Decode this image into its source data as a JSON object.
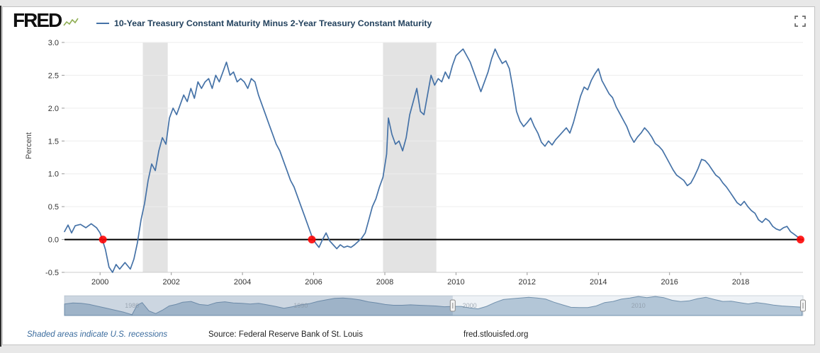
{
  "header": {
    "logo": "FRED",
    "legend_label": "10-Year Treasury Constant Maturity Minus 2-Year Treasury Constant Maturity"
  },
  "icons": {
    "logo_spark": "line-chart-sparkline",
    "fullscreen": "expand-corners"
  },
  "colors": {
    "line": "#4572a7",
    "marker": "#ff0000",
    "recession_band": "#e3e3e3",
    "zero_line": "#000000",
    "navigator_fill": "#b3c6d7",
    "navigator_stroke": "#7291ad",
    "navigator_bg": "#eef2f6",
    "navigator_mask": "rgba(87,114,148,0.22)",
    "accent_text": "#3a6b9d"
  },
  "footer": {
    "recession_note": "Shaded areas indicate U.S. recessions",
    "source": "Source: Federal Reserve Bank of St. Louis",
    "site": "fred.stlouisfed.org"
  },
  "chart_data": {
    "type": "line",
    "title": "10-Year Treasury Constant Maturity Minus 2-Year Treasury Constant Maturity",
    "xlabel": "",
    "ylabel": "Percent",
    "x_range": [
      1999.0,
      2019.75
    ],
    "y_range": [
      -0.5,
      3.0
    ],
    "y_ticks": [
      "3.0",
      "2.5",
      "2.0",
      "1.5",
      "1.0",
      "0.5",
      "0.0",
      "-0.5"
    ],
    "x_ticks": [
      "2000",
      "2002",
      "2004",
      "2006",
      "2008",
      "2010",
      "2012",
      "2014",
      "2016",
      "2018"
    ],
    "grid": true,
    "legend_position": "top",
    "zero_line": 0.0,
    "recession_bands": [
      [
        2001.2,
        2001.9
      ],
      [
        2007.95,
        2009.45
      ]
    ],
    "markers": [
      {
        "x": 2000.08,
        "y": 0.0,
        "label": "zero-crossing 2000"
      },
      {
        "x": 2005.95,
        "y": 0.0,
        "label": "zero-crossing 2006"
      },
      {
        "x": 2019.68,
        "y": 0.0,
        "label": "zero-crossing 2019"
      }
    ],
    "series": [
      {
        "name": "10-Year Treasury Constant Maturity Minus 2-Year Treasury Constant Maturity",
        "points": [
          [
            1999.0,
            0.12
          ],
          [
            1999.1,
            0.22
          ],
          [
            1999.2,
            0.1
          ],
          [
            1999.3,
            0.21
          ],
          [
            1999.45,
            0.23
          ],
          [
            1999.6,
            0.18
          ],
          [
            1999.75,
            0.24
          ],
          [
            1999.9,
            0.18
          ],
          [
            2000.0,
            0.1
          ],
          [
            2000.05,
            0.02
          ],
          [
            2000.15,
            -0.15
          ],
          [
            2000.25,
            -0.42
          ],
          [
            2000.35,
            -0.5
          ],
          [
            2000.45,
            -0.38
          ],
          [
            2000.55,
            -0.45
          ],
          [
            2000.7,
            -0.35
          ],
          [
            2000.85,
            -0.45
          ],
          [
            2000.95,
            -0.3
          ],
          [
            2001.05,
            -0.05
          ],
          [
            2001.15,
            0.3
          ],
          [
            2001.25,
            0.55
          ],
          [
            2001.35,
            0.9
          ],
          [
            2001.45,
            1.15
          ],
          [
            2001.55,
            1.05
          ],
          [
            2001.65,
            1.35
          ],
          [
            2001.75,
            1.55
          ],
          [
            2001.85,
            1.45
          ],
          [
            2001.95,
            1.85
          ],
          [
            2002.05,
            2.0
          ],
          [
            2002.15,
            1.9
          ],
          [
            2002.25,
            2.05
          ],
          [
            2002.35,
            2.2
          ],
          [
            2002.45,
            2.1
          ],
          [
            2002.55,
            2.3
          ],
          [
            2002.65,
            2.15
          ],
          [
            2002.75,
            2.4
          ],
          [
            2002.85,
            2.3
          ],
          [
            2002.95,
            2.4
          ],
          [
            2003.05,
            2.45
          ],
          [
            2003.15,
            2.3
          ],
          [
            2003.25,
            2.5
          ],
          [
            2003.35,
            2.4
          ],
          [
            2003.45,
            2.55
          ],
          [
            2003.55,
            2.7
          ],
          [
            2003.65,
            2.5
          ],
          [
            2003.75,
            2.55
          ],
          [
            2003.85,
            2.4
          ],
          [
            2003.95,
            2.45
          ],
          [
            2004.05,
            2.4
          ],
          [
            2004.15,
            2.3
          ],
          [
            2004.25,
            2.45
          ],
          [
            2004.35,
            2.4
          ],
          [
            2004.45,
            2.2
          ],
          [
            2004.55,
            2.05
          ],
          [
            2004.65,
            1.9
          ],
          [
            2004.75,
            1.75
          ],
          [
            2004.85,
            1.6
          ],
          [
            2004.95,
            1.45
          ],
          [
            2005.05,
            1.35
          ],
          [
            2005.15,
            1.2
          ],
          [
            2005.25,
            1.05
          ],
          [
            2005.35,
            0.9
          ],
          [
            2005.45,
            0.8
          ],
          [
            2005.55,
            0.65
          ],
          [
            2005.65,
            0.5
          ],
          [
            2005.75,
            0.35
          ],
          [
            2005.85,
            0.2
          ],
          [
            2005.95,
            0.05
          ],
          [
            2006.05,
            -0.05
          ],
          [
            2006.15,
            -0.12
          ],
          [
            2006.25,
            0.0
          ],
          [
            2006.35,
            0.1
          ],
          [
            2006.45,
            -0.02
          ],
          [
            2006.55,
            -0.08
          ],
          [
            2006.65,
            -0.14
          ],
          [
            2006.75,
            -0.08
          ],
          [
            2006.85,
            -0.12
          ],
          [
            2006.95,
            -0.1
          ],
          [
            2007.05,
            -0.12
          ],
          [
            2007.15,
            -0.08
          ],
          [
            2007.25,
            -0.03
          ],
          [
            2007.35,
            0.02
          ],
          [
            2007.45,
            0.1
          ],
          [
            2007.55,
            0.3
          ],
          [
            2007.65,
            0.5
          ],
          [
            2007.75,
            0.62
          ],
          [
            2007.85,
            0.8
          ],
          [
            2007.95,
            0.95
          ],
          [
            2008.05,
            1.3
          ],
          [
            2008.1,
            1.85
          ],
          [
            2008.2,
            1.6
          ],
          [
            2008.3,
            1.45
          ],
          [
            2008.4,
            1.5
          ],
          [
            2008.5,
            1.35
          ],
          [
            2008.6,
            1.55
          ],
          [
            2008.7,
            1.9
          ],
          [
            2008.8,
            2.1
          ],
          [
            2008.9,
            2.3
          ],
          [
            2009.0,
            1.95
          ],
          [
            2009.1,
            1.9
          ],
          [
            2009.2,
            2.2
          ],
          [
            2009.3,
            2.5
          ],
          [
            2009.4,
            2.35
          ],
          [
            2009.5,
            2.45
          ],
          [
            2009.6,
            2.4
          ],
          [
            2009.7,
            2.55
          ],
          [
            2009.8,
            2.45
          ],
          [
            2009.9,
            2.65
          ],
          [
            2010.0,
            2.8
          ],
          [
            2010.1,
            2.85
          ],
          [
            2010.2,
            2.9
          ],
          [
            2010.3,
            2.8
          ],
          [
            2010.4,
            2.7
          ],
          [
            2010.5,
            2.55
          ],
          [
            2010.6,
            2.4
          ],
          [
            2010.7,
            2.25
          ],
          [
            2010.8,
            2.4
          ],
          [
            2010.9,
            2.55
          ],
          [
            2011.0,
            2.75
          ],
          [
            2011.1,
            2.9
          ],
          [
            2011.2,
            2.78
          ],
          [
            2011.3,
            2.68
          ],
          [
            2011.4,
            2.72
          ],
          [
            2011.5,
            2.6
          ],
          [
            2011.6,
            2.3
          ],
          [
            2011.7,
            1.95
          ],
          [
            2011.8,
            1.8
          ],
          [
            2011.9,
            1.72
          ],
          [
            2012.0,
            1.78
          ],
          [
            2012.1,
            1.85
          ],
          [
            2012.2,
            1.72
          ],
          [
            2012.3,
            1.62
          ],
          [
            2012.4,
            1.48
          ],
          [
            2012.5,
            1.42
          ],
          [
            2012.6,
            1.5
          ],
          [
            2012.7,
            1.44
          ],
          [
            2012.8,
            1.52
          ],
          [
            2012.9,
            1.58
          ],
          [
            2013.0,
            1.64
          ],
          [
            2013.1,
            1.7
          ],
          [
            2013.2,
            1.62
          ],
          [
            2013.3,
            1.78
          ],
          [
            2013.4,
            1.98
          ],
          [
            2013.5,
            2.18
          ],
          [
            2013.6,
            2.32
          ],
          [
            2013.7,
            2.28
          ],
          [
            2013.8,
            2.42
          ],
          [
            2013.9,
            2.52
          ],
          [
            2014.0,
            2.6
          ],
          [
            2014.1,
            2.42
          ],
          [
            2014.2,
            2.32
          ],
          [
            2014.3,
            2.22
          ],
          [
            2014.4,
            2.16
          ],
          [
            2014.5,
            2.02
          ],
          [
            2014.6,
            1.92
          ],
          [
            2014.7,
            1.82
          ],
          [
            2014.8,
            1.72
          ],
          [
            2014.9,
            1.58
          ],
          [
            2015.0,
            1.48
          ],
          [
            2015.1,
            1.56
          ],
          [
            2015.2,
            1.62
          ],
          [
            2015.3,
            1.7
          ],
          [
            2015.4,
            1.64
          ],
          [
            2015.5,
            1.56
          ],
          [
            2015.6,
            1.46
          ],
          [
            2015.7,
            1.42
          ],
          [
            2015.8,
            1.36
          ],
          [
            2015.9,
            1.26
          ],
          [
            2016.0,
            1.16
          ],
          [
            2016.1,
            1.06
          ],
          [
            2016.2,
            0.98
          ],
          [
            2016.3,
            0.94
          ],
          [
            2016.4,
            0.9
          ],
          [
            2016.5,
            0.82
          ],
          [
            2016.6,
            0.86
          ],
          [
            2016.7,
            0.96
          ],
          [
            2016.8,
            1.08
          ],
          [
            2016.9,
            1.22
          ],
          [
            2017.0,
            1.2
          ],
          [
            2017.1,
            1.14
          ],
          [
            2017.2,
            1.06
          ],
          [
            2017.3,
            0.98
          ],
          [
            2017.4,
            0.94
          ],
          [
            2017.5,
            0.86
          ],
          [
            2017.6,
            0.8
          ],
          [
            2017.7,
            0.72
          ],
          [
            2017.8,
            0.64
          ],
          [
            2017.9,
            0.56
          ],
          [
            2018.0,
            0.52
          ],
          [
            2018.1,
            0.58
          ],
          [
            2018.2,
            0.5
          ],
          [
            2018.3,
            0.44
          ],
          [
            2018.4,
            0.4
          ],
          [
            2018.5,
            0.3
          ],
          [
            2018.6,
            0.26
          ],
          [
            2018.7,
            0.32
          ],
          [
            2018.8,
            0.28
          ],
          [
            2018.9,
            0.2
          ],
          [
            2019.0,
            0.16
          ],
          [
            2019.1,
            0.14
          ],
          [
            2019.2,
            0.18
          ],
          [
            2019.3,
            0.2
          ],
          [
            2019.4,
            0.12
          ],
          [
            2019.5,
            0.08
          ],
          [
            2019.6,
            0.04
          ],
          [
            2019.7,
            0.0
          ]
        ]
      }
    ]
  },
  "navigator": {
    "x_range": [
      1976.0,
      2019.75
    ],
    "y_range": [
      -2.2,
      3.0
    ],
    "selected_range": [
      1999.0,
      2019.75
    ],
    "year_labels": [
      "1980",
      "1990",
      "2000",
      "2010"
    ],
    "points": [
      [
        1976,
        0.8
      ],
      [
        1976.5,
        1.1
      ],
      [
        1977,
        1.0
      ],
      [
        1977.5,
        0.7
      ],
      [
        1978,
        0.2
      ],
      [
        1978.5,
        -0.3
      ],
      [
        1979,
        -0.8
      ],
      [
        1979.5,
        -1.3
      ],
      [
        1980,
        -2.0
      ],
      [
        1980.3,
        0.5
      ],
      [
        1980.6,
        1.2
      ],
      [
        1981,
        -1.0
      ],
      [
        1981.4,
        -1.7
      ],
      [
        1981.8,
        -0.8
      ],
      [
        1982.2,
        0.3
      ],
      [
        1982.6,
        0.7
      ],
      [
        1983,
        1.3
      ],
      [
        1983.5,
        1.5
      ],
      [
        1984,
        0.7
      ],
      [
        1984.5,
        0.5
      ],
      [
        1985,
        1.2
      ],
      [
        1985.5,
        1.4
      ],
      [
        1986,
        1.1
      ],
      [
        1986.5,
        1.0
      ],
      [
        1987,
        0.8
      ],
      [
        1987.5,
        1.0
      ],
      [
        1988,
        0.6
      ],
      [
        1988.5,
        0.2
      ],
      [
        1989,
        -0.3
      ],
      [
        1989.5,
        0.1
      ],
      [
        1990,
        0.6
      ],
      [
        1990.5,
        0.9
      ],
      [
        1991,
        1.5
      ],
      [
        1991.5,
        1.9
      ],
      [
        1992,
        2.3
      ],
      [
        1992.5,
        2.4
      ],
      [
        1993,
        2.2
      ],
      [
        1993.5,
        1.9
      ],
      [
        1994,
        1.4
      ],
      [
        1994.5,
        1.1
      ],
      [
        1995,
        0.7
      ],
      [
        1995.5,
        0.5
      ],
      [
        1996,
        0.5
      ],
      [
        1996.5,
        0.6
      ],
      [
        1997,
        0.5
      ],
      [
        1997.5,
        0.4
      ],
      [
        1998,
        0.3
      ],
      [
        1998.5,
        0.1
      ],
      [
        1999,
        0.2
      ],
      [
        1999.5,
        0.2
      ],
      [
        2000,
        -0.2
      ],
      [
        2000.5,
        -0.45
      ],
      [
        2001,
        0.2
      ],
      [
        2001.5,
        1.2
      ],
      [
        2002,
        2.0
      ],
      [
        2002.5,
        2.2
      ],
      [
        2003,
        2.4
      ],
      [
        2003.5,
        2.6
      ],
      [
        2004,
        2.4
      ],
      [
        2004.5,
        2.1
      ],
      [
        2005,
        1.3
      ],
      [
        2005.5,
        0.6
      ],
      [
        2006,
        -0.05
      ],
      [
        2006.5,
        -0.1
      ],
      [
        2007,
        -0.1
      ],
      [
        2007.5,
        0.3
      ],
      [
        2008,
        1.2
      ],
      [
        2008.5,
        1.5
      ],
      [
        2009,
        2.1
      ],
      [
        2009.5,
        2.4
      ],
      [
        2010,
        2.8
      ],
      [
        2010.5,
        2.5
      ],
      [
        2011,
        2.8
      ],
      [
        2011.5,
        2.5
      ],
      [
        2012,
        1.8
      ],
      [
        2012.5,
        1.45
      ],
      [
        2013,
        1.65
      ],
      [
        2013.5,
        2.2
      ],
      [
        2014,
        2.6
      ],
      [
        2014.5,
        2.0
      ],
      [
        2015,
        1.5
      ],
      [
        2015.5,
        1.55
      ],
      [
        2016,
        1.2
      ],
      [
        2016.5,
        0.85
      ],
      [
        2017,
        1.2
      ],
      [
        2017.5,
        0.9
      ],
      [
        2018,
        0.55
      ],
      [
        2018.5,
        0.3
      ],
      [
        2019,
        0.17
      ],
      [
        2019.7,
        0.0
      ]
    ]
  }
}
